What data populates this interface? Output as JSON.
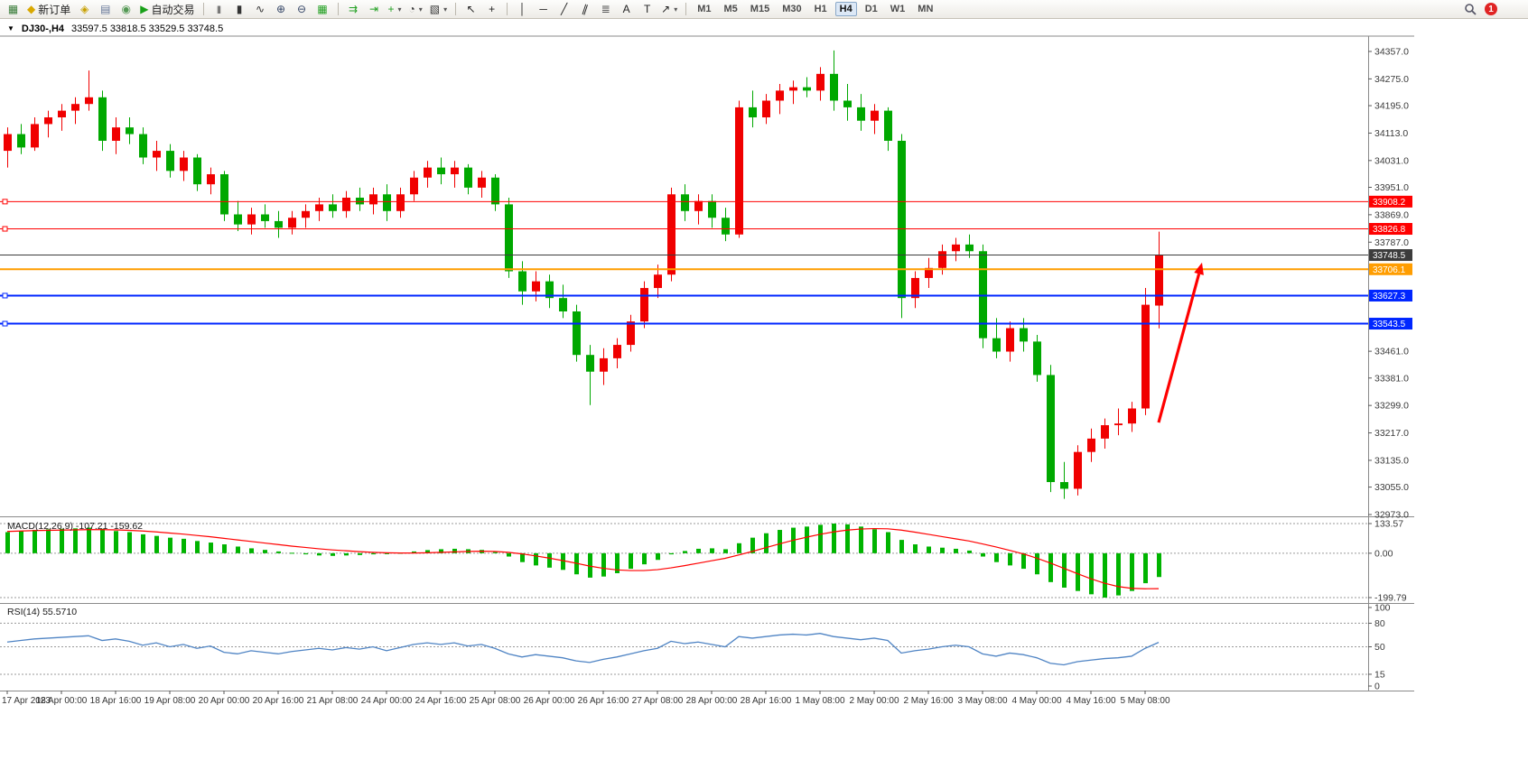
{
  "toolbar": {
    "active_timeframe": "H4",
    "notification_count": "1",
    "items": [
      {
        "k": "btn",
        "n": "new-chart-icon",
        "g": "▦",
        "c": "#3a7d3a"
      },
      {
        "k": "textbtn",
        "n": "new-order-button",
        "icon": "new-order-icon",
        "g": "◆",
        "c": "#d9a800",
        "t": "新订单"
      },
      {
        "k": "btn",
        "n": "editor-icon",
        "g": "◈",
        "c": "#c8a000"
      },
      {
        "k": "btn",
        "n": "print-icon",
        "g": "▤",
        "c": "#667799"
      },
      {
        "k": "btn",
        "n": "preview-icon",
        "g": "◉",
        "c": "#559955"
      },
      {
        "k": "textbtn",
        "n": "autotrading-button",
        "icon": "autotrading-icon",
        "g": "▶",
        "c": "#18a018",
        "t": "自动交易"
      },
      {
        "k": "sep"
      },
      {
        "k": "btn",
        "n": "bar-chart-icon",
        "g": "|||",
        "c": "#333333",
        "small": true
      },
      {
        "k": "btn",
        "n": "candlestick-icon",
        "g": "▮",
        "c": "#333333"
      },
      {
        "k": "btn",
        "n": "line-chart-icon",
        "g": "∿",
        "c": "#333333"
      },
      {
        "k": "btn",
        "n": "zoom-in-icon",
        "g": "⊕",
        "c": "#334466"
      },
      {
        "k": "btn",
        "n": "zoom-out-icon",
        "g": "⊖",
        "c": "#334466"
      },
      {
        "k": "btn",
        "n": "tile-windows-icon",
        "g": "▦",
        "c": "#22a022"
      },
      {
        "k": "sep"
      },
      {
        "k": "btn",
        "n": "auto-scroll-icon",
        "g": "⇉",
        "c": "#22a022"
      },
      {
        "k": "btn",
        "n": "chart-shift-icon",
        "g": "⇥",
        "c": "#22a022"
      },
      {
        "k": "btn",
        "n": "indicators-icon",
        "g": "+",
        "c": "#22a022",
        "caret": true
      },
      {
        "k": "btn",
        "n": "periods-icon",
        "g": "◔",
        "c": "#333333",
        "caret": true
      },
      {
        "k": "btn",
        "n": "templates-icon",
        "g": "▧",
        "c": "#333333",
        "caret": true
      },
      {
        "k": "sep"
      },
      {
        "k": "btn",
        "n": "cursor-icon",
        "g": "↖",
        "c": "#222222"
      },
      {
        "k": "btn",
        "n": "crosshair-icon",
        "g": "+",
        "c": "#222222"
      },
      {
        "k": "sep"
      },
      {
        "k": "btn",
        "n": "vline-icon",
        "g": "│",
        "c": "#222222"
      },
      {
        "k": "btn",
        "n": "hline-icon",
        "g": "─",
        "c": "#222222"
      },
      {
        "k": "btn",
        "n": "trendline-icon",
        "g": "╱",
        "c": "#222222"
      },
      {
        "k": "btn",
        "n": "channel-icon",
        "g": "∥",
        "c": "#222222",
        "rot": true
      },
      {
        "k": "btn",
        "n": "fibo-icon",
        "g": "≣",
        "c": "#555555"
      },
      {
        "k": "btn",
        "n": "text-icon",
        "g": "A",
        "c": "#222222"
      },
      {
        "k": "btn",
        "n": "label-icon",
        "g": "T",
        "c": "#222222"
      },
      {
        "k": "btn",
        "n": "arrows-icon",
        "g": "↗",
        "c": "#222222",
        "caret": true
      },
      {
        "k": "sep"
      },
      {
        "k": "tf",
        "n": "timeframe-m1",
        "t": "M1"
      },
      {
        "k": "tf",
        "n": "timeframe-m5",
        "t": "M5"
      },
      {
        "k": "tf",
        "n": "timeframe-m15",
        "t": "M15"
      },
      {
        "k": "tf",
        "n": "timeframe-m30",
        "t": "M30"
      },
      {
        "k": "tf",
        "n": "timeframe-h1",
        "t": "H1"
      },
      {
        "k": "tf",
        "n": "timeframe-h4",
        "t": "H4",
        "active": true
      },
      {
        "k": "tf",
        "n": "timeframe-d1",
        "t": "D1"
      },
      {
        "k": "tf",
        "n": "timeframe-w1",
        "t": "W1"
      },
      {
        "k": "tf",
        "n": "timeframe-mn",
        "t": "MN"
      },
      {
        "k": "spacer"
      },
      {
        "k": "search",
        "n": "search-icon"
      },
      {
        "k": "badge",
        "n": "notification-badge",
        "t": "1"
      }
    ]
  },
  "chart": {
    "menu_glyph": "▼",
    "symbol_period": "DJ30-,H4",
    "ohlc": "33597.5 33818.5 33529.5 33748.5"
  },
  "macd": {
    "label": "MACD(12,26,9) -107.21 -159.62",
    "axis_labels": [
      "133.57",
      "0.00",
      "-199.79"
    ]
  },
  "rsi": {
    "label": "RSI(14) 55.5710",
    "axis_labels": [
      "100",
      "80",
      "50",
      "15",
      "0"
    ]
  },
  "chart_data": {
    "type": "candlestick",
    "symbol": "DJ30-",
    "timeframe": "H4",
    "current_bar": {
      "open": 33597.5,
      "high": 33818.5,
      "low": 33529.5,
      "close": 33748.5
    },
    "up_color": "#f00000",
    "down_color": "#00a800",
    "price_axis": [
      34357.0,
      34275.0,
      34195.0,
      34113.0,
      34031.0,
      33951.0,
      33869.0,
      33787.0,
      33461.0,
      33381.0,
      33299.0,
      33217.0,
      33135.0,
      33055.0,
      32973.0
    ],
    "hlines": [
      {
        "label": "33908.2",
        "price": 33908.2,
        "color": "#ff0000",
        "w": 1,
        "handles": true,
        "name": "resistance-line-33908"
      },
      {
        "label": "33826.8",
        "price": 33826.8,
        "color": "#ff0000",
        "w": 1,
        "handles": true,
        "name": "resistance-line-33826"
      },
      {
        "label": "33748.5",
        "price": 33748.5,
        "color": "#3c3c3c",
        "w": 1,
        "handles": false,
        "name": "bid-price-line"
      },
      {
        "label": "33706.1",
        "price": 33706.1,
        "color": "#ff9d00",
        "w": 2,
        "handles": false,
        "name": "level-line-33706"
      },
      {
        "label": "33627.3",
        "price": 33627.3,
        "color": "#0026ff",
        "w": 2,
        "handles": true,
        "name": "support-line-33627"
      },
      {
        "label": "33543.5",
        "price": 33543.5,
        "color": "#0026ff",
        "w": 2,
        "handles": true,
        "name": "support-line-33543"
      }
    ],
    "arrow": {
      "from_bar": 85,
      "from_price": 33248,
      "to_bar": 88.2,
      "to_price": 33726,
      "color": "#ff0000"
    },
    "time_axis": [
      "17 Apr 2023",
      "18 Apr 00:00",
      "18 Apr 16:00",
      "19 Apr 08:00",
      "20 Apr 00:00",
      "20 Apr 16:00",
      "21 Apr 08:00",
      "24 Apr 00:00",
      "24 Apr 16:00",
      "25 Apr 08:00",
      "26 Apr 00:00",
      "26 Apr 16:00",
      "27 Apr 08:00",
      "28 Apr 00:00",
      "28 Apr 16:00",
      "1 May 08:00",
      "2 May 00:00",
      "2 May 16:00",
      "3 May 08:00",
      "4 May 00:00",
      "4 May 16:00",
      "5 May 08:00"
    ],
    "candles": [
      [
        34060,
        34130,
        34010,
        34110
      ],
      [
        34110,
        34140,
        34050,
        34070
      ],
      [
        34070,
        34160,
        34060,
        34140
      ],
      [
        34140,
        34180,
        34100,
        34160
      ],
      [
        34160,
        34200,
        34120,
        34180
      ],
      [
        34180,
        34220,
        34140,
        34200
      ],
      [
        34200,
        34300,
        34180,
        34220
      ],
      [
        34220,
        34240,
        34060,
        34090
      ],
      [
        34090,
        34160,
        34050,
        34130
      ],
      [
        34130,
        34160,
        34080,
        34110
      ],
      [
        34110,
        34130,
        34020,
        34040
      ],
      [
        34040,
        34090,
        34000,
        34060
      ],
      [
        34060,
        34080,
        33980,
        34000
      ],
      [
        34000,
        34060,
        33970,
        34040
      ],
      [
        34040,
        34050,
        33940,
        33960
      ],
      [
        33960,
        34010,
        33930,
        33990
      ],
      [
        33990,
        34000,
        33850,
        33870
      ],
      [
        33870,
        33910,
        33820,
        33840
      ],
      [
        33840,
        33890,
        33810,
        33870
      ],
      [
        33870,
        33900,
        33830,
        33850
      ],
      [
        33850,
        33880,
        33800,
        33830
      ],
      [
        33830,
        33880,
        33810,
        33860
      ],
      [
        33860,
        33900,
        33830,
        33880
      ],
      [
        33880,
        33920,
        33850,
        33900
      ],
      [
        33900,
        33930,
        33860,
        33880
      ],
      [
        33880,
        33940,
        33860,
        33920
      ],
      [
        33920,
        33950,
        33880,
        33900
      ],
      [
        33900,
        33950,
        33870,
        33930
      ],
      [
        33930,
        33960,
        33850,
        33880
      ],
      [
        33880,
        33950,
        33860,
        33930
      ],
      [
        33930,
        34000,
        33910,
        33980
      ],
      [
        33980,
        34030,
        33950,
        34010
      ],
      [
        34010,
        34040,
        33960,
        33990
      ],
      [
        33990,
        34030,
        33950,
        34010
      ],
      [
        34010,
        34020,
        33930,
        33950
      ],
      [
        33950,
        34000,
        33920,
        33980
      ],
      [
        33980,
        33990,
        33880,
        33900
      ],
      [
        33900,
        33920,
        33680,
        33700
      ],
      [
        33700,
        33730,
        33600,
        33640
      ],
      [
        33640,
        33700,
        33610,
        33670
      ],
      [
        33670,
        33690,
        33590,
        33620
      ],
      [
        33620,
        33660,
        33560,
        33580
      ],
      [
        33580,
        33600,
        33430,
        33450
      ],
      [
        33450,
        33480,
        33300,
        33400
      ],
      [
        33400,
        33470,
        33360,
        33440
      ],
      [
        33440,
        33500,
        33410,
        33480
      ],
      [
        33480,
        33570,
        33460,
        33550
      ],
      [
        33550,
        33670,
        33530,
        33650
      ],
      [
        33650,
        33720,
        33620,
        33690
      ],
      [
        33690,
        33950,
        33670,
        33930
      ],
      [
        33930,
        33960,
        33850,
        33880
      ],
      [
        33880,
        33930,
        33840,
        33910
      ],
      [
        33910,
        33930,
        33830,
        33860
      ],
      [
        33860,
        33890,
        33790,
        33810
      ],
      [
        33810,
        34210,
        33800,
        34190
      ],
      [
        34190,
        34240,
        34130,
        34160
      ],
      [
        34160,
        34230,
        34140,
        34210
      ],
      [
        34210,
        34260,
        34170,
        34240
      ],
      [
        34240,
        34270,
        34200,
        34250
      ],
      [
        34250,
        34280,
        34220,
        34240
      ],
      [
        34240,
        34310,
        34210,
        34290
      ],
      [
        34290,
        34360,
        34180,
        34210
      ],
      [
        34210,
        34260,
        34150,
        34190
      ],
      [
        34190,
        34230,
        34120,
        34150
      ],
      [
        34150,
        34200,
        34110,
        34180
      ],
      [
        34180,
        34190,
        34060,
        34090
      ],
      [
        34090,
        34110,
        33560,
        33620
      ],
      [
        33620,
        33700,
        33590,
        33680
      ],
      [
        33680,
        33740,
        33650,
        33710
      ],
      [
        33710,
        33780,
        33690,
        33760
      ],
      [
        33760,
        33800,
        33730,
        33780
      ],
      [
        33780,
        33810,
        33740,
        33760
      ],
      [
        33760,
        33780,
        33470,
        33500
      ],
      [
        33500,
        33560,
        33440,
        33460
      ],
      [
        33460,
        33550,
        33430,
        33530
      ],
      [
        33530,
        33560,
        33460,
        33490
      ],
      [
        33490,
        33510,
        33370,
        33390
      ],
      [
        33390,
        33420,
        33040,
        33070
      ],
      [
        33070,
        33130,
        33020,
        33050
      ],
      [
        33050,
        33180,
        33030,
        33160
      ],
      [
        33160,
        33230,
        33130,
        33200
      ],
      [
        33200,
        33260,
        33170,
        33240
      ],
      [
        33240,
        33290,
        33210,
        33245
      ],
      [
        33245,
        33310,
        33220,
        33290
      ],
      [
        33290,
        33650,
        33270,
        33600
      ],
      [
        33597.5,
        33818.5,
        33529.5,
        33748.5
      ]
    ],
    "macd": {
      "max": 133.57,
      "min": -199.79,
      "histogram_color": "#00b400",
      "signal_color": "#ff0000",
      "histogram": [
        95,
        100,
        105,
        108,
        110,
        112,
        115,
        110,
        100,
        95,
        85,
        78,
        70,
        65,
        55,
        48,
        40,
        30,
        22,
        15,
        8,
        2,
        -5,
        -10,
        -12,
        -10,
        -8,
        -5,
        -2,
        2,
        8,
        14,
        18,
        20,
        18,
        15,
        5,
        -15,
        -40,
        -55,
        -65,
        -75,
        -95,
        -110,
        -105,
        -90,
        -70,
        -50,
        -30,
        -5,
        10,
        20,
        22,
        18,
        45,
        70,
        90,
        105,
        115,
        120,
        128,
        133.57,
        130,
        120,
        108,
        95,
        60,
        40,
        30,
        25,
        20,
        12,
        -15,
        -40,
        -55,
        -70,
        -95,
        -130,
        -155,
        -170,
        -185,
        -199.79,
        -190,
        -170,
        -135,
        -107.21
      ],
      "signal": [
        98,
        100,
        102,
        103,
        104,
        105,
        106,
        106,
        105,
        103,
        100,
        96,
        91,
        86,
        80,
        74,
        67,
        60,
        53,
        46,
        39,
        32,
        26,
        20,
        15,
        11,
        7,
        4,
        2,
        1,
        1,
        2,
        4,
        6,
        8,
        9,
        8,
        4,
        -3,
        -12,
        -22,
        -33,
        -45,
        -58,
        -68,
        -75,
        -78,
        -78,
        -74,
        -66,
        -56,
        -45,
        -34,
        -23,
        -8,
        8,
        25,
        42,
        58,
        72,
        85,
        96,
        104,
        109,
        111,
        110,
        104,
        95,
        85,
        75,
        65,
        55,
        42,
        28,
        13,
        -3,
        -22,
        -44,
        -68,
        -92,
        -115,
        -135,
        -150,
        -158,
        -160,
        -159.62
      ]
    },
    "rsi": {
      "range": [
        0,
        100
      ],
      "levels": [
        80,
        50,
        15
      ],
      "line_color": "#4f84c4",
      "current": 55.571,
      "values": [
        56,
        58,
        60,
        61,
        62,
        63,
        64,
        58,
        60,
        57,
        52,
        55,
        50,
        53,
        48,
        51,
        43,
        41,
        45,
        43,
        41,
        44,
        46,
        48,
        46,
        49,
        47,
        50,
        45,
        49,
        53,
        55,
        53,
        55,
        51,
        53,
        48,
        41,
        37,
        40,
        38,
        36,
        32,
        30,
        34,
        37,
        41,
        45,
        48,
        57,
        54,
        56,
        53,
        50,
        63,
        61,
        63,
        65,
        66,
        65,
        67,
        63,
        61,
        59,
        61,
        58,
        42,
        45,
        47,
        50,
        52,
        50,
        41,
        38,
        42,
        40,
        36,
        29,
        27,
        31,
        33,
        35,
        36,
        38,
        48,
        55.57
      ]
    }
  }
}
